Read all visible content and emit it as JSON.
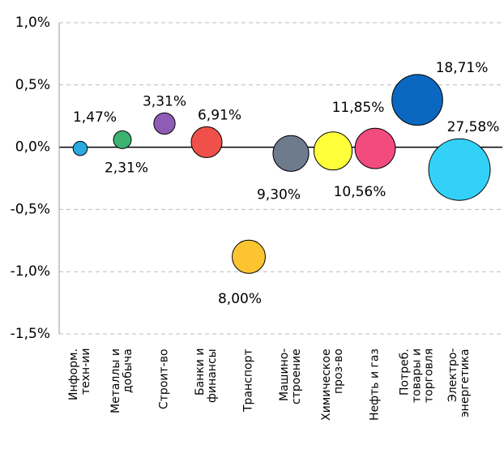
{
  "chart_data": {
    "type": "bubble",
    "categories": [
      "Информ.\nтехн-ии",
      "Металлы и\nдобыча",
      "Строит-во",
      "Банки и\nфинансы",
      "Транспорт",
      "Машино-\nстроение",
      "Химическое\nпроз-во",
      "Нефть и газ",
      "Потреб.\nтовары и\nторговля",
      "Электро-\nэнергетика"
    ],
    "values": [
      -0.01,
      0.06,
      0.19,
      0.04,
      -0.88,
      -0.05,
      -0.03,
      -0.01,
      0.38,
      -0.18
    ],
    "sizes": [
      1.47,
      2.31,
      3.31,
      6.91,
      8.0,
      9.3,
      10.56,
      11.85,
      18.71,
      27.58
    ],
    "size_labels": [
      "1,47%",
      "2,31%",
      "3,31%",
      "6,91%",
      "8,00%",
      "9,30%",
      "10,56%",
      "11,85%",
      "18,71%",
      "27,58%"
    ],
    "colors": [
      "#29abe2",
      "#3cb371",
      "#8e5bb5",
      "#f0504a",
      "#fbc430",
      "#6d7b8d",
      "#ffff3a",
      "#f24b7e",
      "#0b68c0",
      "#33d1f7"
    ],
    "ylim": [
      -1.5,
      1.0
    ],
    "yticks": [
      {
        "value": -1.5,
        "label": "-1,5%"
      },
      {
        "value": -1.0,
        "label": "-1,0%"
      },
      {
        "value": -0.5,
        "label": "-0,5%"
      },
      {
        "value": 0.0,
        "label": "0,0%"
      },
      {
        "value": 0.5,
        "label": "0,5%"
      },
      {
        "value": 1.0,
        "label": "1,0%"
      }
    ],
    "grid": true
  }
}
